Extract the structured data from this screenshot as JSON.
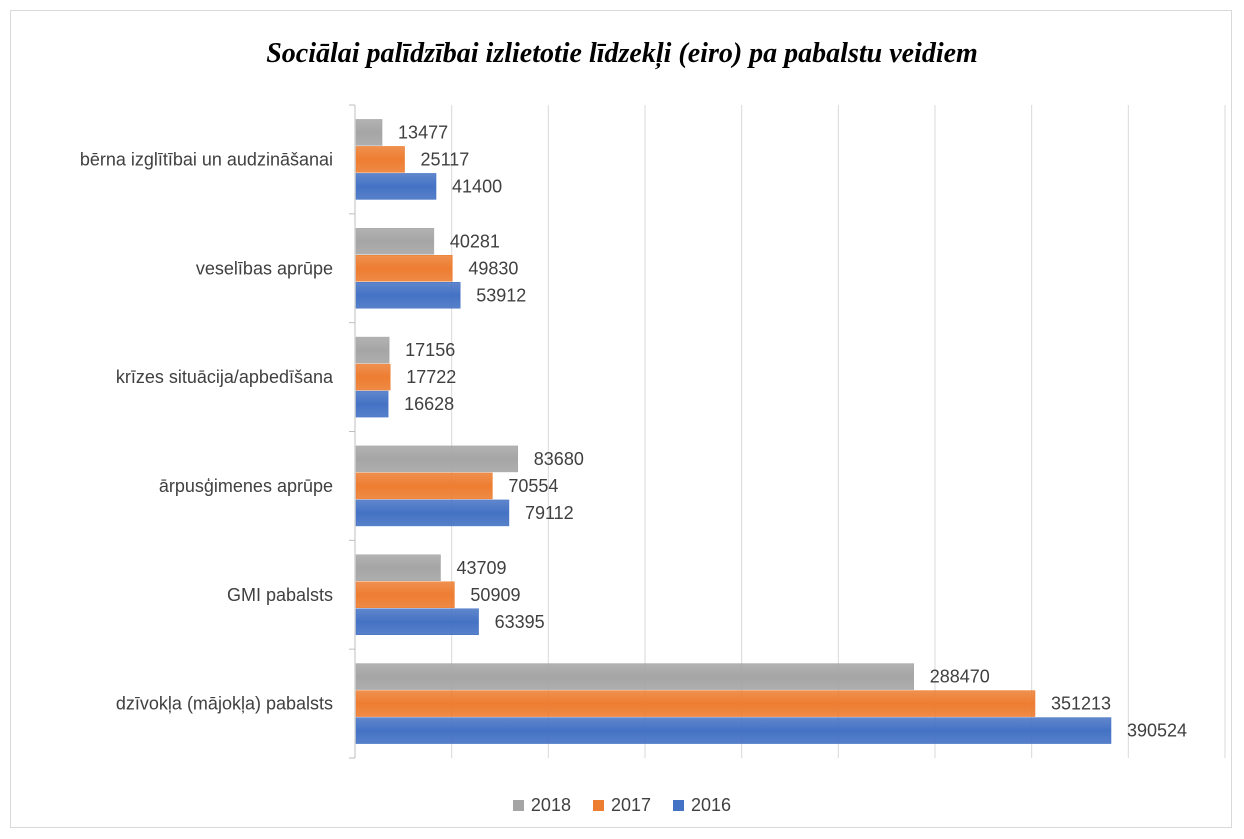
{
  "chart_data": {
    "type": "bar",
    "orientation": "horizontal",
    "title": "Sociālai palīdzībai izlietotie līdzekļi (eiro) pa pabalstu veidiem",
    "categories": [
      "bērna izglītībai un audzināšanai",
      "veselības aprūpe",
      "krīzes situācija/apbedīšana",
      "ārpusģimenes aprūpe",
      "GMI pabalsts",
      "dzīvokļa (mājokļa) pabalsts"
    ],
    "series": [
      {
        "name": "2018",
        "color": "#a5a5a5",
        "values": [
          13477,
          40281,
          17156,
          83680,
          43709,
          288470
        ]
      },
      {
        "name": "2017",
        "color": "#ed7d31",
        "values": [
          25117,
          49830,
          17722,
          70554,
          50909,
          351213
        ]
      },
      {
        "name": "2016",
        "color": "#4472c4",
        "values": [
          41400,
          53912,
          16628,
          79112,
          63395,
          390524
        ]
      }
    ],
    "xlim": [
      0,
      450000
    ],
    "grid": true,
    "legend_position": "bottom",
    "data_labels": true
  }
}
